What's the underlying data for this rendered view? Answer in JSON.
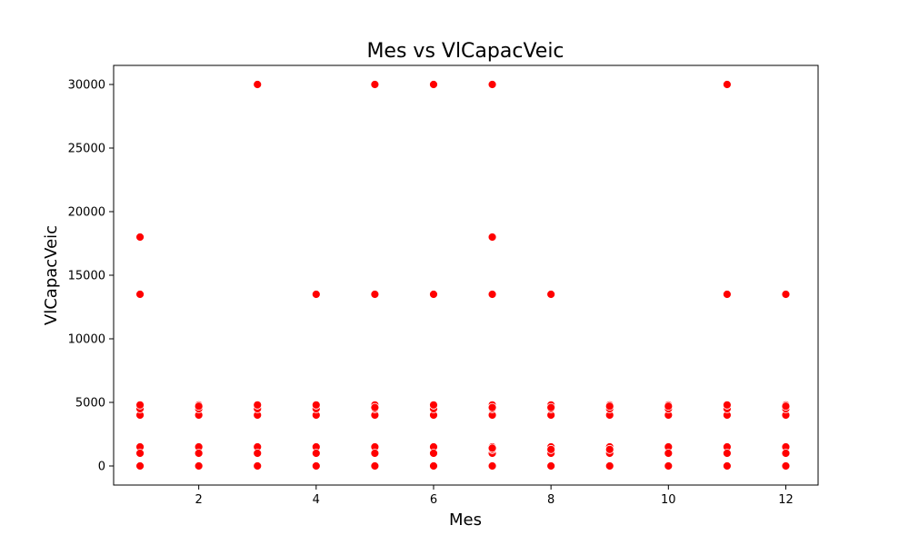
{
  "chart_data": {
    "type": "scatter",
    "title": "Mes vs VlCapacVeic",
    "xlabel": "Mes",
    "ylabel": "VlCapacVeic",
    "xlim": [
      0.55,
      12.55
    ],
    "ylim": [
      -1500,
      31500
    ],
    "xticks": [
      2,
      4,
      6,
      8,
      10,
      12
    ],
    "yticks": [
      0,
      5000,
      10000,
      15000,
      20000,
      25000,
      30000
    ],
    "grid": false,
    "legend": "none",
    "marker_color": "#ff0000",
    "marker_edge_color": "#ffffff",
    "series": [
      {
        "x": [
          1,
          1,
          1,
          1,
          1,
          1,
          1,
          1,
          1,
          1,
          2,
          2,
          2,
          2,
          2,
          2,
          2,
          2,
          3,
          3,
          3,
          3,
          3,
          3,
          3,
          3,
          3,
          4,
          4,
          4,
          4,
          4,
          4,
          4,
          4,
          4,
          5,
          5,
          5,
          5,
          5,
          5,
          5,
          5,
          5,
          5,
          6,
          6,
          6,
          6,
          6,
          6,
          6,
          6,
          6,
          6,
          7,
          7,
          7,
          7,
          7,
          7,
          7,
          7,
          7,
          7,
          7,
          7,
          8,
          8,
          8,
          8,
          8,
          8,
          8,
          8,
          8,
          9,
          9,
          9,
          9,
          9,
          9,
          9,
          9,
          10,
          10,
          10,
          10,
          10,
          10,
          10,
          10,
          11,
          11,
          11,
          11,
          11,
          11,
          11,
          11,
          11,
          11,
          12,
          12,
          12,
          12,
          12,
          12,
          12,
          12,
          12
        ],
        "y": [
          0,
          1000,
          1500,
          4000,
          4500,
          4800,
          13500,
          18000,
          1000,
          0,
          0,
          1000,
          1500,
          4000,
          4500,
          4800,
          4700,
          1000,
          0,
          1000,
          1500,
          4000,
          4500,
          4800,
          30000,
          1000,
          4800,
          0,
          1000,
          1500,
          4000,
          4500,
          4800,
          13500,
          1000,
          4800,
          0,
          1000,
          1500,
          4000,
          4500,
          4800,
          13500,
          30000,
          4600,
          1000,
          0,
          1000,
          1500,
          4000,
          4500,
          4800,
          13500,
          30000,
          1000,
          4800,
          0,
          1000,
          1500,
          4000,
          4500,
          4800,
          13500,
          18000,
          30000,
          1300,
          1400,
          4600,
          0,
          1000,
          1500,
          4000,
          4500,
          4800,
          13500,
          1300,
          4600,
          0,
          1000,
          1500,
          4000,
          4500,
          4800,
          1300,
          4700,
          0,
          1000,
          1500,
          4000,
          4500,
          4800,
          1000,
          4700,
          0,
          1000,
          1500,
          4000,
          4500,
          4800,
          13500,
          30000,
          1000,
          4800,
          0,
          1000,
          1500,
          4000,
          4500,
          4800,
          13500,
          4700,
          1000
        ]
      }
    ]
  }
}
